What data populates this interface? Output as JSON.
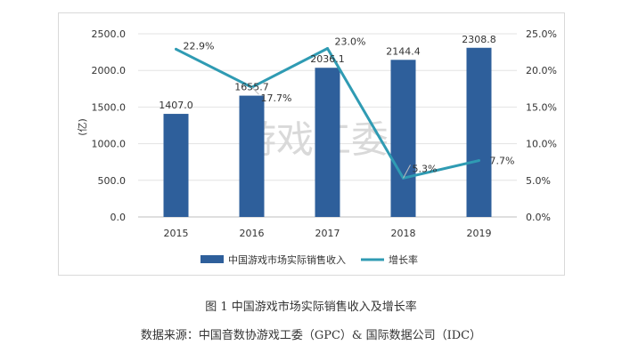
{
  "chart_data": {
    "type": "bar",
    "categories": [
      "2015",
      "2016",
      "2017",
      "2018",
      "2019"
    ],
    "series": [
      {
        "name": "中国游戏市场实际销售收入",
        "type": "bar",
        "axis": "left",
        "values": [
          1407.0,
          1655.7,
          2036.1,
          2144.4,
          2308.8
        ],
        "color": "#2e5f9b"
      },
      {
        "name": "增长率",
        "type": "line",
        "axis": "right",
        "values": [
          22.9,
          17.7,
          23.0,
          5.3,
          7.7
        ],
        "color": "#2f9bb3"
      }
    ],
    "bar_labels": [
      "1407.0",
      "1655.7",
      "2036.1",
      "2144.4",
      "2308.8"
    ],
    "line_labels": [
      "22.9%",
      "17.7%",
      "23.0%",
      "5.3%",
      "7.7%"
    ],
    "ylabel": "(亿)",
    "ylim": [
      0,
      2500
    ],
    "y2lim": [
      0,
      25
    ],
    "y_ticks": [
      "0.0",
      "500.0",
      "1000.0",
      "1500.0",
      "2000.0",
      "2500.0"
    ],
    "y2_ticks": [
      "0.0%",
      "5.0%",
      "10.0%",
      "15.0%",
      "20.0%",
      "25.0%"
    ],
    "grid": true,
    "legend_position": "bottom",
    "watermark": "游戏工委"
  },
  "captions": {
    "figure": "图 1  中国游戏市场实际销售收入及增长率",
    "source": "数据来源：中国音数协游戏工委（GPC）& 国际数据公司（IDC）"
  }
}
